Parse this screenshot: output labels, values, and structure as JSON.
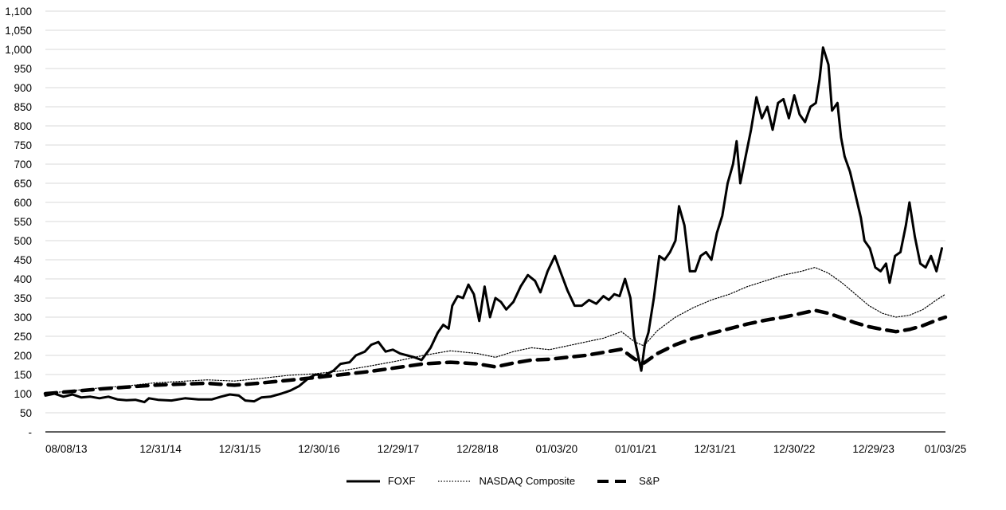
{
  "chart_data": {
    "type": "line",
    "title": "",
    "xlabel": "",
    "ylabel": "",
    "ylim": [
      0,
      1100
    ],
    "grid": true,
    "legend_position": "bottom",
    "y_ticks": [
      {
        "value": 0,
        "label": "-"
      },
      {
        "value": 50,
        "label": "50"
      },
      {
        "value": 100,
        "label": "100"
      },
      {
        "value": 150,
        "label": "150"
      },
      {
        "value": 200,
        "label": "200"
      },
      {
        "value": 250,
        "label": "250"
      },
      {
        "value": 300,
        "label": "300"
      },
      {
        "value": 350,
        "label": "350"
      },
      {
        "value": 400,
        "label": "400"
      },
      {
        "value": 450,
        "label": "450"
      },
      {
        "value": 500,
        "label": "500"
      },
      {
        "value": 550,
        "label": "550"
      },
      {
        "value": 600,
        "label": "600"
      },
      {
        "value": 650,
        "label": "650"
      },
      {
        "value": 700,
        "label": "700"
      },
      {
        "value": 750,
        "label": "750"
      },
      {
        "value": 800,
        "label": "800"
      },
      {
        "value": 850,
        "label": "850"
      },
      {
        "value": 900,
        "label": "900"
      },
      {
        "value": 950,
        "label": "950"
      },
      {
        "value": 1000,
        "label": "1,000"
      },
      {
        "value": 1050,
        "label": "1,050"
      },
      {
        "value": 1100,
        "label": "1,100"
      }
    ],
    "x_tick_labels": [
      "08/08/13",
      "12/31/14",
      "12/31/15",
      "12/30/16",
      "12/29/17",
      "12/28/18",
      "01/03/20",
      "01/01/21",
      "12/31/21",
      "12/30/22",
      "12/29/23",
      "01/03/25"
    ],
    "x_tick_positions": [
      0.0,
      0.128,
      0.216,
      0.304,
      0.392,
      0.48,
      0.568,
      0.656,
      0.744,
      0.832,
      0.92,
      1.0
    ],
    "series": [
      {
        "name": "FOXF",
        "style": "solid",
        "color": "#000000",
        "points": [
          [
            0.0,
            95
          ],
          [
            0.01,
            100
          ],
          [
            0.02,
            92
          ],
          [
            0.03,
            98
          ],
          [
            0.04,
            90
          ],
          [
            0.05,
            92
          ],
          [
            0.06,
            88
          ],
          [
            0.07,
            92
          ],
          [
            0.08,
            85
          ],
          [
            0.09,
            83
          ],
          [
            0.1,
            84
          ],
          [
            0.11,
            78
          ],
          [
            0.115,
            88
          ],
          [
            0.125,
            84
          ],
          [
            0.14,
            82
          ],
          [
            0.155,
            88
          ],
          [
            0.17,
            85
          ],
          [
            0.185,
            85
          ],
          [
            0.195,
            92
          ],
          [
            0.205,
            98
          ],
          [
            0.215,
            95
          ],
          [
            0.222,
            82
          ],
          [
            0.232,
            80
          ],
          [
            0.24,
            90
          ],
          [
            0.25,
            92
          ],
          [
            0.262,
            100
          ],
          [
            0.272,
            108
          ],
          [
            0.282,
            120
          ],
          [
            0.292,
            140
          ],
          [
            0.3,
            150
          ],
          [
            0.31,
            148
          ],
          [
            0.32,
            160
          ],
          [
            0.328,
            178
          ],
          [
            0.338,
            182
          ],
          [
            0.345,
            200
          ],
          [
            0.355,
            210
          ],
          [
            0.362,
            228
          ],
          [
            0.37,
            235
          ],
          [
            0.378,
            210
          ],
          [
            0.386,
            215
          ],
          [
            0.394,
            205
          ],
          [
            0.402,
            200
          ],
          [
            0.41,
            195
          ],
          [
            0.418,
            188
          ],
          [
            0.428,
            220
          ],
          [
            0.436,
            260
          ],
          [
            0.442,
            280
          ],
          [
            0.448,
            270
          ],
          [
            0.452,
            330
          ],
          [
            0.458,
            355
          ],
          [
            0.464,
            350
          ],
          [
            0.47,
            385
          ],
          [
            0.476,
            360
          ],
          [
            0.482,
            290
          ],
          [
            0.488,
            380
          ],
          [
            0.494,
            300
          ],
          [
            0.5,
            350
          ],
          [
            0.506,
            340
          ],
          [
            0.512,
            320
          ],
          [
            0.52,
            340
          ],
          [
            0.528,
            380
          ],
          [
            0.536,
            410
          ],
          [
            0.544,
            395
          ],
          [
            0.55,
            365
          ],
          [
            0.558,
            420
          ],
          [
            0.562,
            440
          ],
          [
            0.566,
            460
          ],
          [
            0.572,
            420
          ],
          [
            0.58,
            370
          ],
          [
            0.588,
            330
          ],
          [
            0.596,
            330
          ],
          [
            0.604,
            345
          ],
          [
            0.612,
            335
          ],
          [
            0.62,
            355
          ],
          [
            0.626,
            345
          ],
          [
            0.632,
            360
          ],
          [
            0.638,
            355
          ],
          [
            0.644,
            400
          ],
          [
            0.65,
            350
          ],
          [
            0.654,
            250
          ],
          [
            0.658,
            205
          ],
          [
            0.662,
            160
          ],
          [
            0.666,
            230
          ],
          [
            0.67,
            260
          ],
          [
            0.676,
            350
          ],
          [
            0.682,
            460
          ],
          [
            0.688,
            450
          ],
          [
            0.694,
            470
          ],
          [
            0.7,
            500
          ],
          [
            0.704,
            590
          ],
          [
            0.71,
            540
          ],
          [
            0.716,
            420
          ],
          [
            0.722,
            420
          ],
          [
            0.728,
            460
          ],
          [
            0.734,
            470
          ],
          [
            0.74,
            450
          ],
          [
            0.746,
            520
          ],
          [
            0.752,
            565
          ],
          [
            0.758,
            650
          ],
          [
            0.764,
            700
          ],
          [
            0.768,
            760
          ],
          [
            0.772,
            650
          ],
          [
            0.778,
            720
          ],
          [
            0.784,
            790
          ],
          [
            0.79,
            875
          ],
          [
            0.796,
            820
          ],
          [
            0.802,
            850
          ],
          [
            0.808,
            790
          ],
          [
            0.814,
            860
          ],
          [
            0.82,
            870
          ],
          [
            0.826,
            820
          ],
          [
            0.832,
            880
          ],
          [
            0.838,
            830
          ],
          [
            0.844,
            810
          ],
          [
            0.85,
            850
          ],
          [
            0.856,
            860
          ],
          [
            0.86,
            920
          ],
          [
            0.864,
            1005
          ],
          [
            0.87,
            960
          ],
          [
            0.874,
            840
          ],
          [
            0.88,
            860
          ],
          [
            0.884,
            770
          ],
          [
            0.888,
            720
          ],
          [
            0.894,
            680
          ],
          [
            0.9,
            620
          ],
          [
            0.906,
            560
          ],
          [
            0.91,
            500
          ],
          [
            0.916,
            480
          ],
          [
            0.922,
            430
          ],
          [
            0.928,
            420
          ],
          [
            0.934,
            440
          ],
          [
            0.938,
            390
          ],
          [
            0.944,
            460
          ],
          [
            0.95,
            470
          ],
          [
            0.956,
            540
          ],
          [
            0.96,
            600
          ],
          [
            0.966,
            510
          ],
          [
            0.972,
            440
          ],
          [
            0.978,
            430
          ],
          [
            0.984,
            460
          ],
          [
            0.99,
            420
          ],
          [
            0.996,
            480
          ]
        ]
      },
      {
        "name": "NASDAQ Composite",
        "style": "dotted",
        "color": "#000000",
        "points": [
          [
            0.0,
            100
          ],
          [
            0.03,
            108
          ],
          [
            0.06,
            115
          ],
          [
            0.09,
            120
          ],
          [
            0.12,
            128
          ],
          [
            0.15,
            132
          ],
          [
            0.18,
            136
          ],
          [
            0.21,
            133
          ],
          [
            0.24,
            140
          ],
          [
            0.27,
            148
          ],
          [
            0.3,
            152
          ],
          [
            0.33,
            160
          ],
          [
            0.36,
            172
          ],
          [
            0.39,
            185
          ],
          [
            0.42,
            200
          ],
          [
            0.45,
            212
          ],
          [
            0.48,
            205
          ],
          [
            0.5,
            195
          ],
          [
            0.52,
            210
          ],
          [
            0.54,
            220
          ],
          [
            0.56,
            215
          ],
          [
            0.58,
            225
          ],
          [
            0.6,
            235
          ],
          [
            0.62,
            245
          ],
          [
            0.64,
            262
          ],
          [
            0.655,
            235
          ],
          [
            0.665,
            225
          ],
          [
            0.68,
            265
          ],
          [
            0.7,
            300
          ],
          [
            0.72,
            325
          ],
          [
            0.74,
            345
          ],
          [
            0.76,
            360
          ],
          [
            0.78,
            380
          ],
          [
            0.8,
            395
          ],
          [
            0.82,
            410
          ],
          [
            0.84,
            420
          ],
          [
            0.855,
            430
          ],
          [
            0.87,
            415
          ],
          [
            0.885,
            390
          ],
          [
            0.9,
            360
          ],
          [
            0.915,
            330
          ],
          [
            0.93,
            310
          ],
          [
            0.945,
            300
          ],
          [
            0.96,
            305
          ],
          [
            0.975,
            320
          ],
          [
            0.99,
            345
          ],
          [
            1.0,
            360
          ]
        ]
      },
      {
        "name": "S&P",
        "style": "dashed",
        "color": "#000000",
        "points": [
          [
            0.0,
            100
          ],
          [
            0.03,
            106
          ],
          [
            0.06,
            112
          ],
          [
            0.09,
            117
          ],
          [
            0.12,
            122
          ],
          [
            0.15,
            125
          ],
          [
            0.18,
            127
          ],
          [
            0.21,
            122
          ],
          [
            0.24,
            128
          ],
          [
            0.27,
            135
          ],
          [
            0.3,
            142
          ],
          [
            0.33,
            150
          ],
          [
            0.36,
            158
          ],
          [
            0.39,
            168
          ],
          [
            0.42,
            178
          ],
          [
            0.45,
            182
          ],
          [
            0.48,
            178
          ],
          [
            0.5,
            170
          ],
          [
            0.52,
            180
          ],
          [
            0.54,
            188
          ],
          [
            0.56,
            190
          ],
          [
            0.58,
            195
          ],
          [
            0.6,
            200
          ],
          [
            0.62,
            208
          ],
          [
            0.64,
            216
          ],
          [
            0.655,
            190
          ],
          [
            0.665,
            180
          ],
          [
            0.68,
            205
          ],
          [
            0.7,
            228
          ],
          [
            0.72,
            245
          ],
          [
            0.74,
            258
          ],
          [
            0.76,
            270
          ],
          [
            0.78,
            282
          ],
          [
            0.8,
            292
          ],
          [
            0.82,
            300
          ],
          [
            0.84,
            310
          ],
          [
            0.855,
            318
          ],
          [
            0.87,
            310
          ],
          [
            0.885,
            298
          ],
          [
            0.9,
            285
          ],
          [
            0.915,
            275
          ],
          [
            0.93,
            268
          ],
          [
            0.945,
            262
          ],
          [
            0.96,
            268
          ],
          [
            0.975,
            278
          ],
          [
            0.99,
            292
          ],
          [
            1.0,
            300
          ]
        ]
      }
    ]
  },
  "legend": {
    "items": [
      {
        "label": "FOXF",
        "style": "solid"
      },
      {
        "label": "NASDAQ Composite",
        "style": "dotted"
      },
      {
        "label": "S&P",
        "style": "dashed"
      }
    ]
  }
}
